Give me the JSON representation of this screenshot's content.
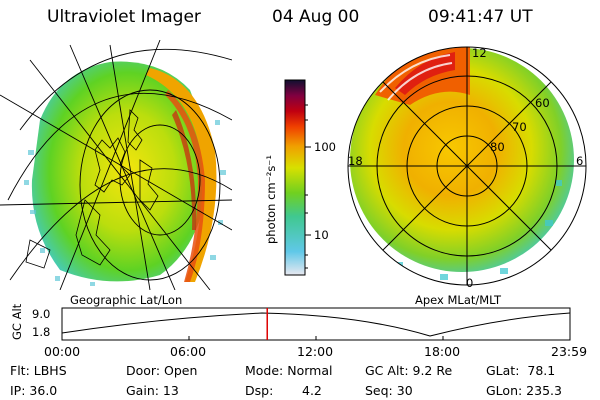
{
  "header": {
    "instrument": "Ultraviolet Imager",
    "date": "04 Aug 00",
    "time": "09:41:47 UT"
  },
  "left_panel": {
    "caption": "Geographic Lat/Lon"
  },
  "right_panel": {
    "caption": "Apex MLat/MLT",
    "mlt_labels": [
      "12",
      "18",
      "6",
      "0"
    ],
    "lat_labels": [
      "60",
      "70",
      "80"
    ]
  },
  "colorbar": {
    "unit_label": "photon cm⁻²s⁻¹",
    "ticks": [
      "100",
      "10"
    ]
  },
  "altitude_plot": {
    "ylabel": "GC Alt",
    "y_ticks": [
      "9.0",
      "1.8"
    ],
    "x_ticks": [
      "00:00",
      "06:00",
      "12:00",
      "18:00",
      "23:59"
    ],
    "marker_time_fraction": 0.404
  },
  "status": {
    "filter": "Flt: LBHS",
    "ip": "IP: 36.0",
    "door": "Door: Open",
    "gain": "Gain: 13",
    "mode": "Mode: Normal",
    "dsp_label": "Dsp:",
    "dsp_value": "4.2",
    "gc_alt": "GC Alt: 9.2 Re",
    "seq": "Seq: 30",
    "glat": "GLat:  78.1",
    "glon": "GLon: 235.3"
  },
  "colors": {
    "marker": "#dd0000"
  }
}
